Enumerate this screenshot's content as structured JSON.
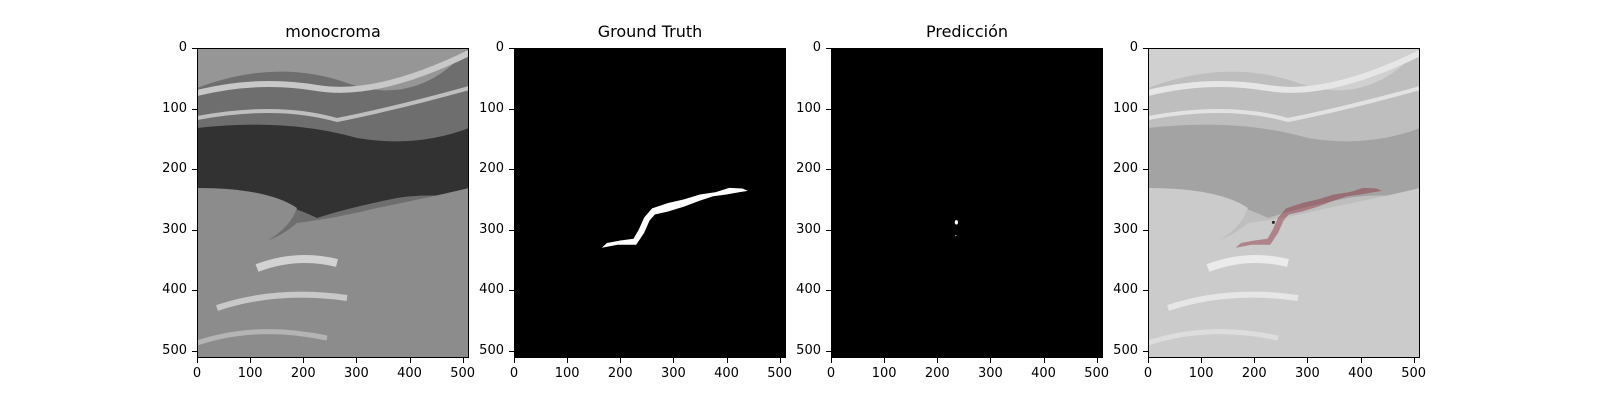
{
  "figure": {
    "panels": [
      {
        "id": "mono",
        "title": "monocroma"
      },
      {
        "id": "gt",
        "title": "Ground Truth"
      },
      {
        "id": "pred",
        "title": "Predicción"
      },
      {
        "id": "overlay",
        "title": ""
      }
    ],
    "x_ticks": [
      "0",
      "100",
      "200",
      "300",
      "400",
      "500"
    ],
    "y_ticks": [
      "0",
      "100",
      "200",
      "300",
      "400",
      "500"
    ],
    "image_size": [
      512,
      512
    ],
    "colors": {
      "mask": "#ffffff",
      "background": "#000000",
      "overlay_mask": "#8b2d3a"
    }
  }
}
